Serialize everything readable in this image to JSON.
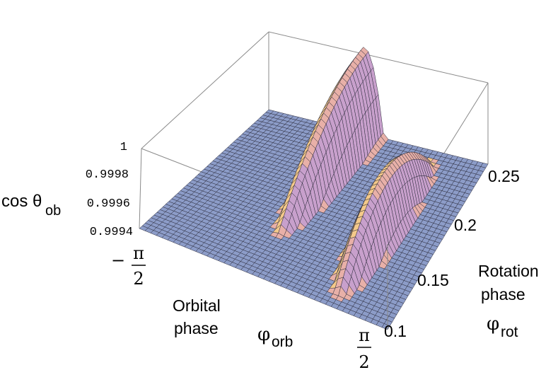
{
  "chart_data": {
    "type": "surface3d",
    "title": "",
    "z_axis": {
      "label_main": "cos θ",
      "label_sub": "ob",
      "ticks": [
        "1",
        "0.9998",
        "0.9996",
        "0.9994"
      ],
      "range": [
        0.9994,
        1.0
      ]
    },
    "x_axis": {
      "label_line1": "Orbital",
      "label_line2": "phase",
      "symbol": "φ",
      "symbol_sub": "orb",
      "tick_min": {
        "sign": "−",
        "num": "π",
        "den": "2"
      },
      "tick_max": {
        "num": "π",
        "den": "2"
      },
      "range": [
        -1.5708,
        1.5708
      ]
    },
    "y_axis": {
      "label_line1": "Rotation",
      "label_line2": "phase",
      "symbol": "φ",
      "symbol_sub": "rot",
      "ticks": [
        "0.1",
        "0.15",
        "0.2",
        "0.25"
      ],
      "range": [
        0.1,
        0.25
      ]
    },
    "surface": {
      "baseline": 0.9994,
      "humps": [
        {
          "x_center": -0.2,
          "x_halfwidth": 0.28,
          "y_center": 0.25,
          "y_halfwidth": 0.11,
          "peak": 1.0
        },
        {
          "x_center": 0.85,
          "x_halfwidth": 0.25,
          "y_center": 0.175,
          "y_halfwidth": 0.065,
          "peak": 0.9998
        }
      ],
      "grid_color": "#2a2a3a",
      "floor_color": "#8c9cc8",
      "hump_colors": [
        "#f4c98a",
        "#e8b0a8",
        "#c8a0cc"
      ]
    }
  }
}
